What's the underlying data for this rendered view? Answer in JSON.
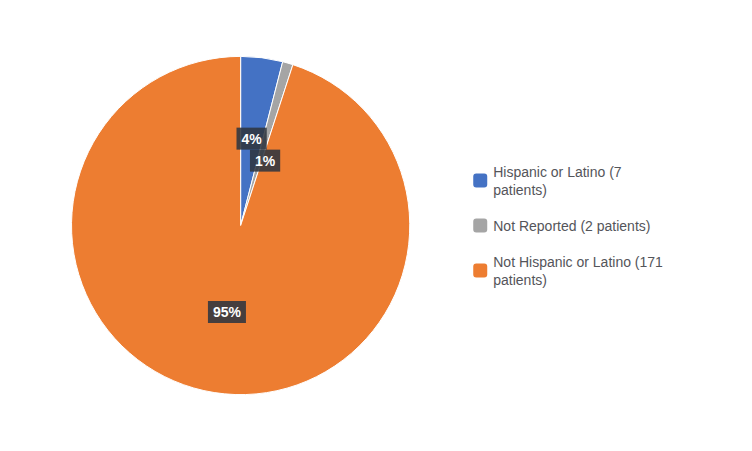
{
  "chart_data": {
    "type": "pie",
    "categories": [
      "Hispanic or Latino (7\npatients)",
      "Not Reported (2 patients)",
      "Not Hispanic or Latino (171\npatients)"
    ],
    "values": [
      4,
      1,
      95
    ],
    "value_labels": [
      "4%",
      "1%",
      "95%"
    ],
    "colors": [
      "#4472C4",
      "#A5A5A5",
      "#ED7D31"
    ],
    "data_labels": true,
    "legend": "right"
  }
}
